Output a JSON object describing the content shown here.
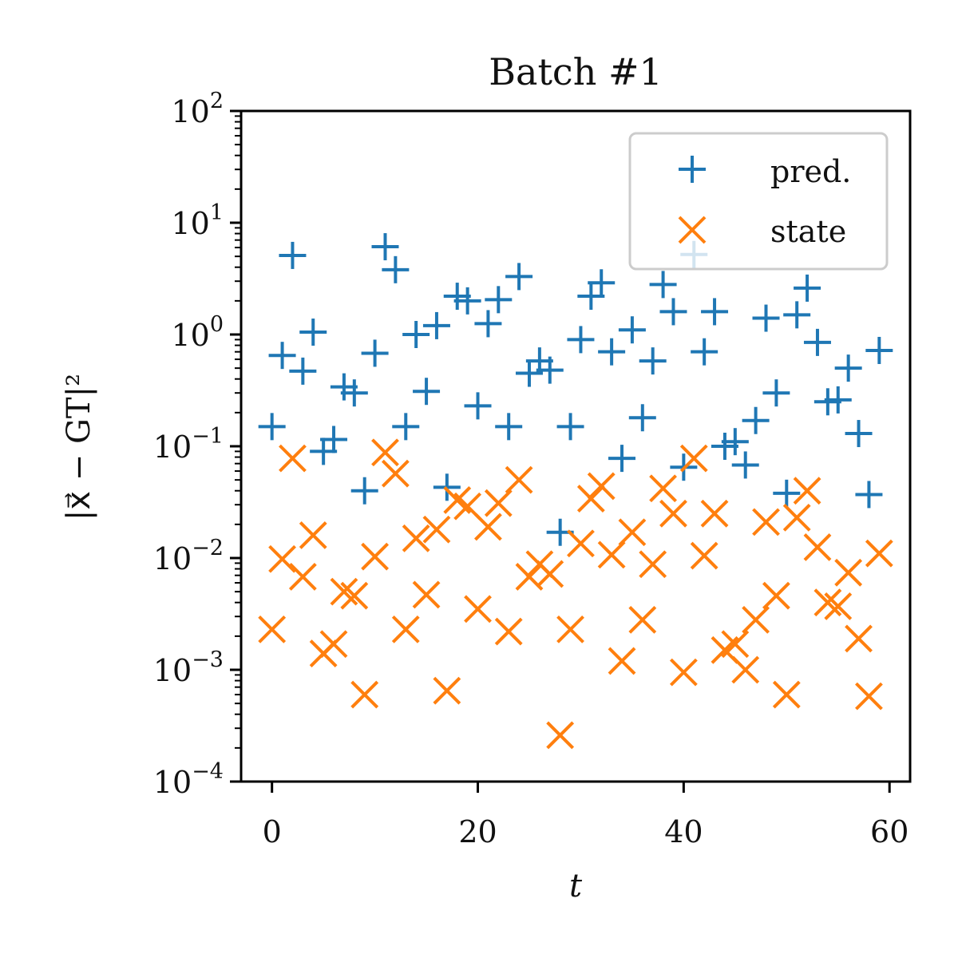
{
  "chart_data": {
    "type": "scatter",
    "title": "Batch #1",
    "xlabel": "t",
    "ylabel": "|x⃗ − GT|²",
    "xlim": [
      -3,
      62
    ],
    "ylim": [
      0.0001,
      100
    ],
    "yscale": "log",
    "grid": false,
    "legend_position": "top-right",
    "x_ticks": [
      {
        "value": 0,
        "label": "0"
      },
      {
        "value": 20,
        "label": "20"
      },
      {
        "value": 40,
        "label": "40"
      },
      {
        "value": 60,
        "label": "60"
      }
    ],
    "y_ticks": [
      {
        "value": 100,
        "base": "10",
        "exp": "2"
      },
      {
        "value": 10,
        "base": "10",
        "exp": "1"
      },
      {
        "value": 1,
        "base": "10",
        "exp": "0"
      },
      {
        "value": 0.1,
        "base": "10",
        "exp": "−1"
      },
      {
        "value": 0.01,
        "base": "10",
        "exp": "−2"
      },
      {
        "value": 0.001,
        "base": "10",
        "exp": "−3"
      },
      {
        "value": 0.0001,
        "base": "10",
        "exp": "−4"
      }
    ],
    "series": [
      {
        "name": "pred.",
        "marker": "plus",
        "color": "#1f77b4",
        "x": [
          0,
          1,
          2,
          3,
          4,
          5,
          6,
          7,
          8,
          9,
          10,
          11,
          12,
          13,
          14,
          15,
          16,
          17,
          18,
          19,
          20,
          21,
          22,
          23,
          24,
          25,
          26,
          27,
          28,
          29,
          30,
          31,
          32,
          33,
          34,
          35,
          36,
          37,
          38,
          39,
          40,
          41,
          42,
          43,
          44,
          45,
          46,
          47,
          48,
          49,
          50,
          51,
          52,
          53,
          54,
          55,
          56,
          57,
          58,
          59
        ],
        "y": [
          0.15,
          0.65,
          5.1,
          0.47,
          1.05,
          0.09,
          0.115,
          0.34,
          0.3,
          0.04,
          0.68,
          6.1,
          3.8,
          0.15,
          1.0,
          0.31,
          1.2,
          0.043,
          2.2,
          2.0,
          0.23,
          1.25,
          2.05,
          0.15,
          3.3,
          0.45,
          0.58,
          0.48,
          0.017,
          0.15,
          0.9,
          2.2,
          2.9,
          0.7,
          0.078,
          1.1,
          0.18,
          0.58,
          2.8,
          1.6,
          0.065,
          5.2,
          0.7,
          1.6,
          0.1,
          0.11,
          0.068,
          0.17,
          1.4,
          0.3,
          0.038,
          1.5,
          2.6,
          0.85,
          0.25,
          0.26,
          0.5,
          0.13,
          0.037,
          0.72
        ]
      },
      {
        "name": "state",
        "marker": "x",
        "color": "#ff7f0e",
        "x": [
          0,
          1,
          2,
          3,
          4,
          5,
          6,
          7,
          8,
          9,
          10,
          11,
          12,
          13,
          14,
          15,
          16,
          17,
          18,
          19,
          20,
          21,
          22,
          23,
          24,
          25,
          26,
          27,
          28,
          29,
          30,
          31,
          32,
          33,
          34,
          35,
          36,
          37,
          38,
          39,
          40,
          41,
          42,
          43,
          44,
          45,
          46,
          47,
          48,
          49,
          50,
          51,
          52,
          53,
          54,
          55,
          56,
          57,
          58,
          59
        ],
        "y": [
          0.0023,
          0.0098,
          0.078,
          0.0068,
          0.016,
          0.0014,
          0.0017,
          0.005,
          0.0046,
          0.0006,
          0.0103,
          0.088,
          0.057,
          0.0023,
          0.015,
          0.0047,
          0.018,
          0.00065,
          0.033,
          0.029,
          0.0035,
          0.019,
          0.031,
          0.0022,
          0.05,
          0.0068,
          0.0088,
          0.0072,
          0.00026,
          0.0023,
          0.0135,
          0.034,
          0.044,
          0.0107,
          0.0012,
          0.017,
          0.0028,
          0.0088,
          0.042,
          0.025,
          0.00095,
          0.078,
          0.0105,
          0.025,
          0.0015,
          0.0017,
          0.001,
          0.0028,
          0.021,
          0.0046,
          0.0006,
          0.023,
          0.04,
          0.0125,
          0.004,
          0.0037,
          0.0074,
          0.0019,
          0.00058,
          0.011
        ]
      }
    ]
  }
}
